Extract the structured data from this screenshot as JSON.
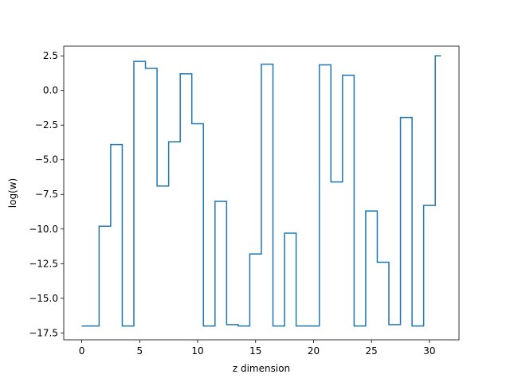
{
  "chart_data": {
    "type": "line",
    "style": "step",
    "title": "",
    "xlabel": "z dimension",
    "ylabel": "log(w)",
    "xlim": [
      -1.55,
      32.55
    ],
    "ylim": [
      -18.0,
      3.2
    ],
    "x_ticks": [
      0,
      5,
      10,
      15,
      20,
      25,
      30
    ],
    "y_ticks": [
      2.5,
      0.0,
      -2.5,
      -5.0,
      -7.5,
      -10.0,
      -12.5,
      -15.0,
      -17.5
    ],
    "x_tick_labels": [
      "0",
      "5",
      "10",
      "15",
      "20",
      "25",
      "30"
    ],
    "y_tick_labels": [
      "2.5",
      "0.0",
      "−2.5",
      "−5.0",
      "−7.5",
      "−10.0",
      "−12.5",
      "−15.0",
      "−17.5"
    ],
    "grid": false,
    "series": [
      {
        "color": "#1f77b4",
        "x": [
          0,
          1,
          2,
          3,
          4,
          5,
          6,
          7,
          8,
          9,
          10,
          11,
          12,
          13,
          14,
          15,
          16,
          17,
          18,
          19,
          20,
          21,
          22,
          23,
          24,
          25,
          26,
          27,
          28,
          29,
          30,
          31
        ],
        "values": [
          -17.0,
          -17.0,
          -9.8,
          -3.9,
          -17.0,
          2.1,
          1.6,
          -6.9,
          -3.7,
          1.2,
          -2.4,
          -17.0,
          -8.0,
          -16.9,
          -17.0,
          -11.8,
          1.9,
          -17.0,
          -10.3,
          -17.0,
          -17.0,
          1.85,
          -6.6,
          1.1,
          -17.0,
          -8.7,
          -12.4,
          -16.9,
          -1.95,
          -17.0,
          -8.3,
          2.5
        ]
      }
    ]
  }
}
